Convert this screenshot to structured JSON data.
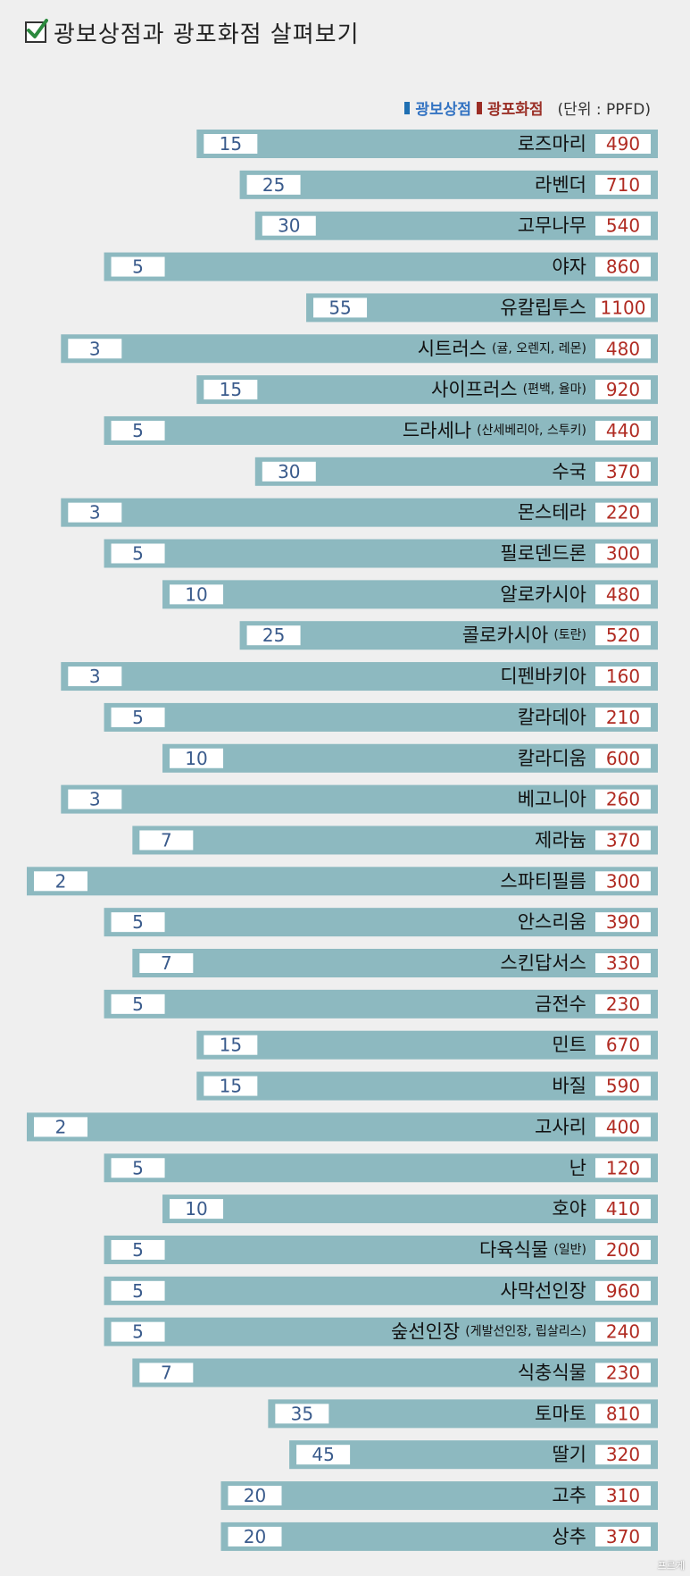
{
  "title": "광보상점과 광포화점 살펴보기",
  "legend": {
    "low": "광보상점",
    "high": "광포화점",
    "unit": "(단위 : PPFD)",
    "low_color": "#1f6fb2",
    "high_color": "#9b2c24"
  },
  "watermark": "프르게",
  "chart_data": {
    "type": "bar",
    "x_unit": "PPFD",
    "series": [
      {
        "name": "광보상점",
        "color": "#1f6fb2"
      },
      {
        "name": "광포화점",
        "color": "#9b2c24"
      }
    ],
    "rows": [
      {
        "name": "로즈마리",
        "note": "",
        "low": 15,
        "high": 490
      },
      {
        "name": "라벤더",
        "note": "",
        "low": 25,
        "high": 710
      },
      {
        "name": "고무나무",
        "note": "",
        "low": 30,
        "high": 540
      },
      {
        "name": "야자",
        "note": "",
        "low": 5,
        "high": 860
      },
      {
        "name": "유칼립투스",
        "note": "",
        "low": 55,
        "high": 1100
      },
      {
        "name": "시트러스",
        "note": "(귤, 오렌지, 레몬)",
        "low": 3,
        "high": 480
      },
      {
        "name": "사이프러스",
        "note": "(편백, 율마)",
        "low": 15,
        "high": 920
      },
      {
        "name": "드라세나",
        "note": "(산세베리아, 스투키)",
        "low": 5,
        "high": 440
      },
      {
        "name": "수국",
        "note": "",
        "low": 30,
        "high": 370
      },
      {
        "name": "몬스테라",
        "note": "",
        "low": 3,
        "high": 220
      },
      {
        "name": "필로덴드론",
        "note": "",
        "low": 5,
        "high": 300
      },
      {
        "name": "알로카시아",
        "note": "",
        "low": 10,
        "high": 480
      },
      {
        "name": "콜로카시아",
        "note": "(토란)",
        "low": 25,
        "high": 520
      },
      {
        "name": "디펜바키아",
        "note": "",
        "low": 3,
        "high": 160
      },
      {
        "name": "칼라데아",
        "note": "",
        "low": 5,
        "high": 210
      },
      {
        "name": "칼라디움",
        "note": "",
        "low": 10,
        "high": 600
      },
      {
        "name": "베고니아",
        "note": "",
        "low": 3,
        "high": 260
      },
      {
        "name": "제라늄",
        "note": "",
        "low": 7,
        "high": 370
      },
      {
        "name": "스파티필름",
        "note": "",
        "low": 2,
        "high": 300
      },
      {
        "name": "안스리움",
        "note": "",
        "low": 5,
        "high": 390
      },
      {
        "name": "스킨답서스",
        "note": "",
        "low": 7,
        "high": 330
      },
      {
        "name": "금전수",
        "note": "",
        "low": 5,
        "high": 230
      },
      {
        "name": "민트",
        "note": "",
        "low": 15,
        "high": 670
      },
      {
        "name": "바질",
        "note": "",
        "low": 15,
        "high": 590
      },
      {
        "name": "고사리",
        "note": "",
        "low": 2,
        "high": 400
      },
      {
        "name": "난",
        "note": "",
        "low": 5,
        "high": 120
      },
      {
        "name": "호야",
        "note": "",
        "low": 10,
        "high": 410
      },
      {
        "name": "다육식물",
        "note": "(일반)",
        "low": 5,
        "high": 200
      },
      {
        "name": "사막선인장",
        "note": "",
        "low": 5,
        "high": 960
      },
      {
        "name": "숲선인장",
        "note": "(게발선인장, 립살리스)",
        "low": 5,
        "high": 240
      },
      {
        "name": "식충식물",
        "note": "",
        "low": 7,
        "high": 230
      },
      {
        "name": "토마토",
        "note": "",
        "low": 35,
        "high": 810
      },
      {
        "name": "딸기",
        "note": "",
        "low": 45,
        "high": 320
      },
      {
        "name": "고추",
        "note": "",
        "low": 20,
        "high": 310
      },
      {
        "name": "상추",
        "note": "",
        "low": 20,
        "high": 370
      }
    ]
  }
}
